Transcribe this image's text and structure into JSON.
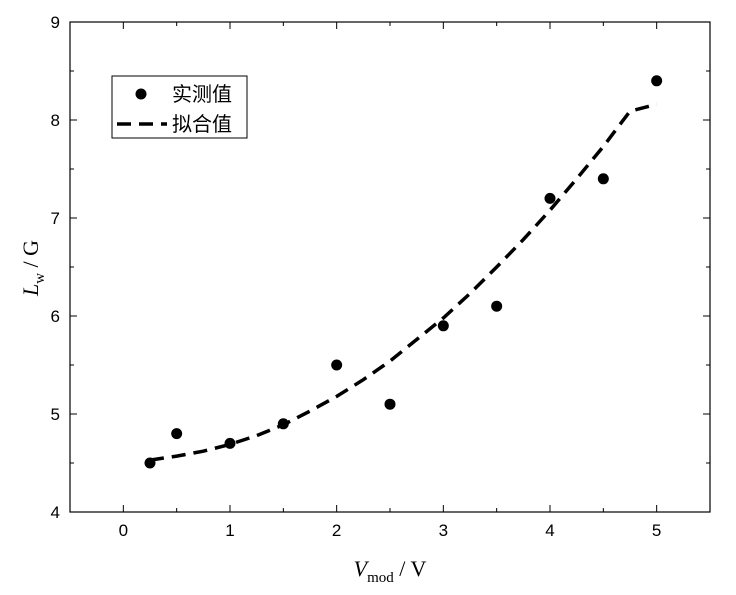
{
  "chart_data": {
    "type": "scatter",
    "x_axis": {
      "label_main": "V",
      "label_sub": "mod",
      "label_unit": " / V",
      "range": [
        -0.5,
        5.5
      ],
      "ticks": [
        0,
        1,
        2,
        3,
        4,
        5
      ],
      "tick_labels": [
        "0",
        "1",
        "2",
        "3",
        "4",
        "5"
      ]
    },
    "y_axis": {
      "label_main": "L",
      "label_sub": "w",
      "label_unit": " / G",
      "range": [
        4,
        9
      ],
      "ticks": [
        4,
        5,
        6,
        7,
        8,
        9
      ],
      "tick_labels": [
        "4",
        "5",
        "6",
        "7",
        "8",
        "9"
      ]
    },
    "grid": false,
    "legend_position": "top-left",
    "series": [
      {
        "name": "实测值",
        "kind": "points",
        "color": "#000000",
        "x": [
          0.25,
          0.5,
          1.0,
          1.5,
          2.0,
          2.5,
          3.0,
          3.5,
          4.0,
          4.5,
          5.0
        ],
        "y": [
          4.5,
          4.8,
          4.7,
          4.9,
          5.5,
          5.1,
          5.9,
          6.1,
          7.2,
          7.4,
          8.4
        ]
      },
      {
        "name": "拟合值",
        "kind": "dashed-line",
        "color": "#000000",
        "x": [
          0.25,
          0.5,
          0.75,
          1.0,
          1.25,
          1.5,
          1.75,
          2.0,
          2.25,
          2.5,
          2.75,
          3.0,
          3.25,
          3.5,
          3.75,
          4.0,
          4.25,
          4.5,
          4.75,
          5.0
        ],
        "y": [
          4.53,
          4.57,
          4.62,
          4.69,
          4.78,
          4.89,
          5.03,
          5.18,
          5.35,
          5.54,
          5.76,
          5.98,
          6.23,
          6.5,
          6.78,
          7.08,
          7.4,
          7.73,
          8.09,
          8.16
        ]
      }
    ]
  }
}
